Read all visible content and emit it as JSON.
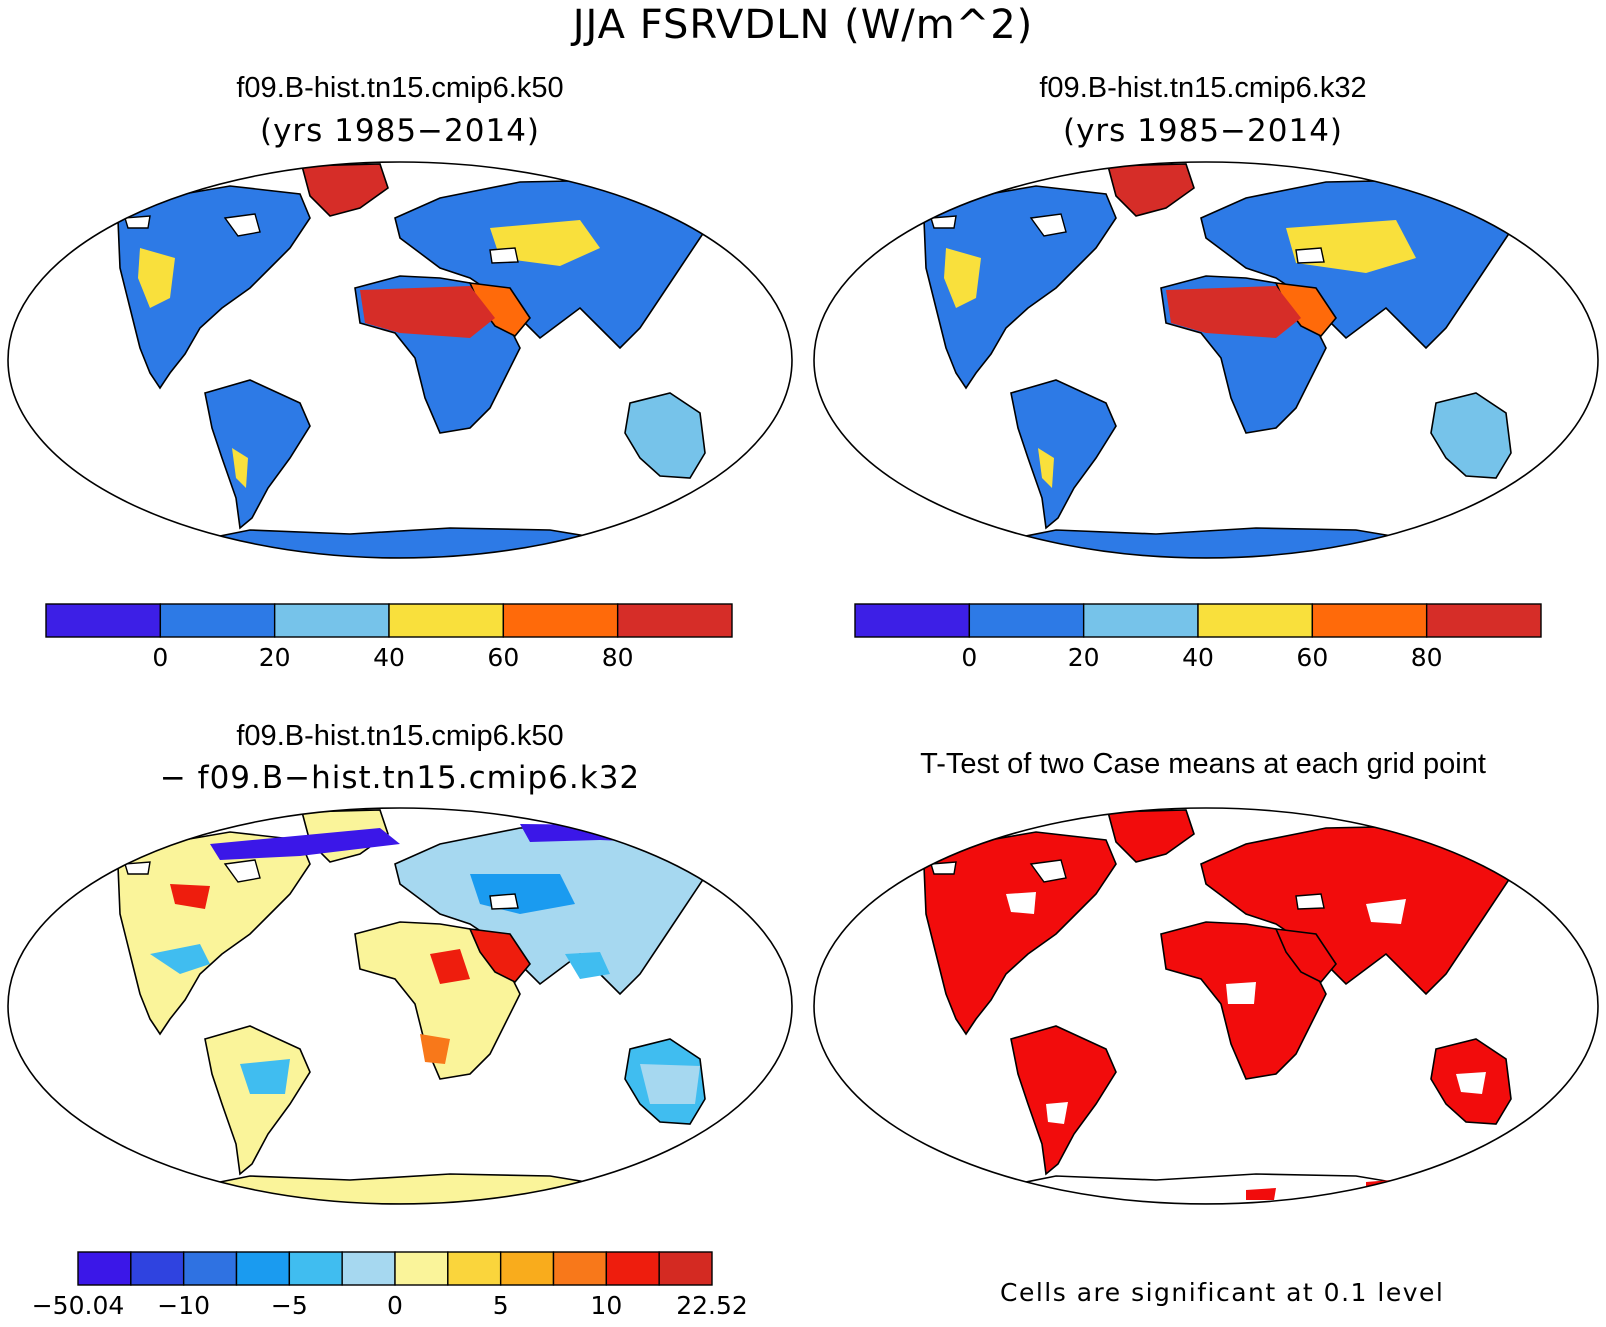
{
  "figure": {
    "title": "JJA FSRVDLN (W/m^2)",
    "footnote": "Cells are significant at 0.1 level"
  },
  "panels": [
    {
      "id": "case1",
      "title": "f09.B-hist.tn15.cmip6.k50",
      "subtitle": "(yrs 1985−2014)"
    },
    {
      "id": "case2",
      "title": "f09.B-hist.tn15.cmip6.k32",
      "subtitle": "(yrs 1985−2014)"
    },
    {
      "id": "diff",
      "title": "f09.B-hist.tn15.cmip6.k50",
      "subtitle": "− f09.B−hist.tn15.cmip6.k32"
    },
    {
      "id": "ttest",
      "title": "T-Test of two Case means at each grid point",
      "subtitle": ""
    }
  ],
  "colors": {
    "ocean": "#ffffff",
    "coast": "#000000",
    "significant": "#f20c0c",
    "case_levels": [
      "#3d1fe6",
      "#2d7ae6",
      "#76c3ea",
      "#f9e03c",
      "#ff6a0a",
      "#d62d28"
    ],
    "diff_levels": [
      "#3b17e8",
      "#2f43e0",
      "#2f72e2",
      "#1a9bf0",
      "#40bdf0",
      "#a6d8f0",
      "#faf49a",
      "#fad53c",
      "#f9ac1c",
      "#f8781a",
      "#ee1d0d",
      "#d42a22"
    ]
  },
  "chart_data": [
    {
      "type": "heatmap",
      "panel": "case1",
      "projection": "Robinson",
      "colorbar": {
        "ticks": [
          "0",
          "20",
          "40",
          "60",
          "80"
        ],
        "levels": 6,
        "min_label": "",
        "max_label": ""
      },
      "regions": [
        {
          "name": "Greenland",
          "level": 5
        },
        {
          "name": "Sahara",
          "level": 5
        },
        {
          "name": "Arabian Peninsula",
          "level": 4
        },
        {
          "name": "Central Asia",
          "level": 3
        },
        {
          "name": "Australia",
          "level": 2
        },
        {
          "name": "other land",
          "level": 1
        }
      ]
    },
    {
      "type": "heatmap",
      "panel": "case2",
      "projection": "Robinson",
      "colorbar": {
        "ticks": [
          "0",
          "20",
          "40",
          "60",
          "80"
        ],
        "levels": 6,
        "min_label": "",
        "max_label": ""
      },
      "regions": [
        {
          "name": "Greenland",
          "level": 5
        },
        {
          "name": "Sahara",
          "level": 5
        },
        {
          "name": "Arabian Peninsula",
          "level": 4
        },
        {
          "name": "Central Asia",
          "level": 3
        },
        {
          "name": "Australia",
          "level": 2
        },
        {
          "name": "other land",
          "level": 1
        }
      ]
    },
    {
      "type": "heatmap",
      "panel": "diff",
      "projection": "Robinson",
      "colorbar": {
        "ticks": [
          "−50.04",
          "−10",
          "−5",
          "0",
          "5",
          "10",
          "22.52"
        ],
        "levels": 12
      },
      "regions": [
        {
          "name": "Siberian Arctic coast",
          "level": 0
        },
        {
          "name": "Arabian Peninsula",
          "level": 10
        },
        {
          "name": "Southern Africa",
          "level": 9
        },
        {
          "name": "Central USA",
          "level": 9
        },
        {
          "name": "Australia",
          "level": 4
        },
        {
          "name": "Antarctica",
          "level": 6
        },
        {
          "name": "other land",
          "level": 6
        }
      ]
    },
    {
      "type": "heatmap",
      "panel": "ttest",
      "projection": "Robinson",
      "significance_level": 0.1,
      "regions": [
        {
          "name": "most land",
          "significant": true
        },
        {
          "name": "Antarctica",
          "significant": false
        }
      ]
    }
  ]
}
